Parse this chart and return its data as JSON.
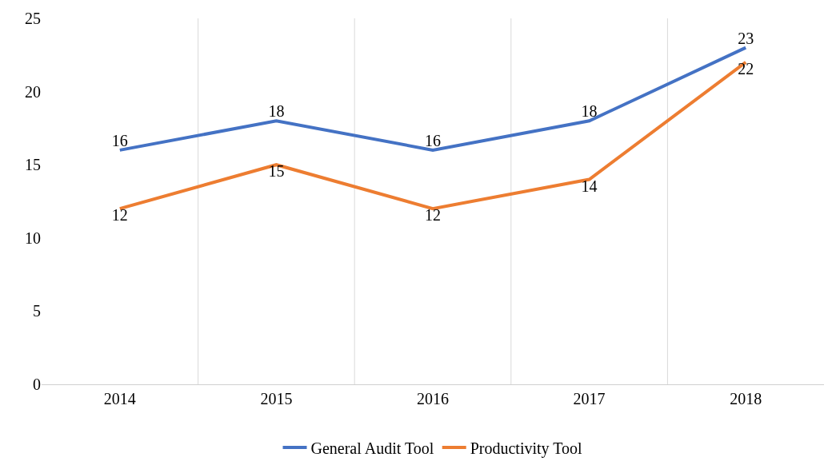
{
  "chart_data": {
    "type": "line",
    "categories": [
      "2014",
      "2015",
      "2016",
      "2017",
      "2018"
    ],
    "series": [
      {
        "name": "General Audit Tool",
        "color": "#4472c4",
        "values": [
          16,
          18,
          16,
          18,
          23
        ]
      },
      {
        "name": "Productivity Tool",
        "color": "#ed7d31",
        "values": [
          12,
          15,
          12,
          14,
          22
        ]
      }
    ],
    "ylim": [
      0,
      25
    ],
    "yticks": [
      0,
      5,
      10,
      15,
      20,
      25
    ],
    "grid": "x",
    "legend": "bottom",
    "data_labels": true,
    "marker": "none",
    "line_style": "solid"
  }
}
